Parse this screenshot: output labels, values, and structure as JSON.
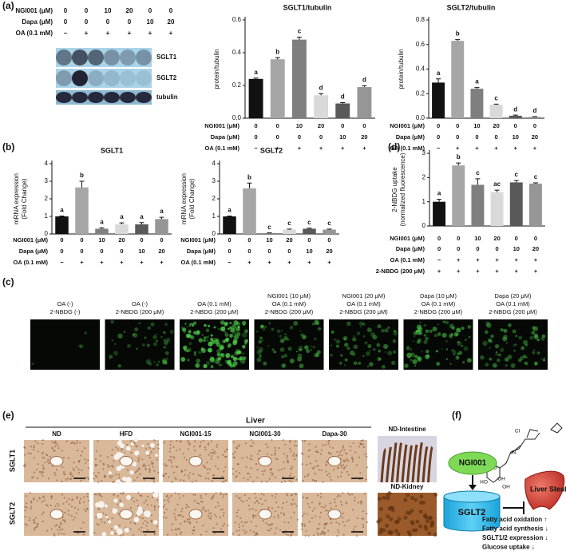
{
  "panel_labels": [
    "(a)",
    "(b)",
    "(c)",
    "(d)",
    "(e)",
    "(f)"
  ],
  "blot": {
    "treatments": [
      {
        "label": "NGI001 (μM)",
        "values": [
          "0",
          "0",
          "10",
          "20",
          "0",
          "0"
        ]
      },
      {
        "label": "Dapa (μM)",
        "values": [
          "0",
          "0",
          "0",
          "0",
          "10",
          "20"
        ]
      },
      {
        "label": "OA (0.1 mM)",
        "values": [
          "−",
          "+",
          "+",
          "+",
          "+",
          "+"
        ]
      }
    ],
    "bands": [
      "SGLT1",
      "SGLT2",
      "tubulin"
    ]
  },
  "chart_data": [
    {
      "type": "bar",
      "title": "SGLT1/tubulin",
      "ylabel": [
        "protein/tubulin"
      ],
      "values": [
        0.24,
        0.36,
        0.48,
        0.14,
        0.09,
        0.19
      ],
      "errors": [
        0.005,
        0.01,
        0.015,
        0.01,
        0.005,
        0.008
      ],
      "letters": [
        "a",
        "b",
        "c",
        "d",
        "d",
        "d"
      ],
      "colors": [
        "#111111",
        "#a6a6a6",
        "#7f7f7f",
        "#d9d9d9",
        "#595959",
        "#969696"
      ],
      "ylim": [
        0,
        0.6
      ],
      "yticks": [
        {
          "value": 0,
          "label": "0.0"
        },
        0.2,
        0.4,
        0.6
      ],
      "treatments": [
        {
          "label": "NGI001 (μM)",
          "values": [
            "0",
            "0",
            "10",
            "20",
            "0",
            "0"
          ]
        },
        {
          "label": "Dapa (μM)",
          "values": [
            "0",
            "0",
            "0",
            "0",
            "10",
            "20"
          ]
        },
        {
          "label": "OA (0.1 mM)",
          "values": [
            "−",
            "+",
            "+",
            "+",
            "+",
            "+"
          ]
        }
      ]
    },
    {
      "type": "bar",
      "title": "SGLT2/tubulin",
      "ylabel": [
        "protein/tubulin"
      ],
      "values": [
        0.29,
        0.63,
        0.24,
        0.11,
        0.02,
        0.01
      ],
      "errors": [
        0.03,
        0.01,
        0.01,
        0.005,
        0.005,
        0.003
      ],
      "letters": [
        "a",
        "b",
        "a",
        "c",
        "d",
        "d"
      ],
      "colors": [
        "#111111",
        "#a6a6a6",
        "#7f7f7f",
        "#d9d9d9",
        "#595959",
        "#969696"
      ],
      "ylim": [
        0,
        0.8
      ],
      "yticks": [
        {
          "value": 0,
          "label": "0.0"
        },
        0.2,
        0.4,
        0.6,
        0.8
      ],
      "treatments": [
        {
          "label": "NGI001 (μM)",
          "values": [
            "0",
            "0",
            "10",
            "20",
            "0",
            "0"
          ]
        },
        {
          "label": "Dapa (μM)",
          "values": [
            "0",
            "0",
            "0",
            "0",
            "10",
            "20"
          ]
        },
        {
          "label": "OA (0.1 mM)",
          "values": [
            "−",
            "+",
            "+",
            "+",
            "+",
            "+"
          ]
        }
      ]
    },
    {
      "type": "bar",
      "title": "SGLT1",
      "ylabel": [
        "mRNA expression",
        "(Fold Change)"
      ],
      "values": [
        1.0,
        2.65,
        0.3,
        0.55,
        0.55,
        0.85
      ],
      "errors": [
        0.02,
        0.35,
        0.05,
        0.08,
        0.1,
        0.1
      ],
      "letters": [
        "a",
        "b",
        "a",
        "a",
        "a",
        "a"
      ],
      "colors": [
        "#111111",
        "#a6a6a6",
        "#7f7f7f",
        "#d9d9d9",
        "#595959",
        "#969696"
      ],
      "ylim": [
        0,
        4
      ],
      "yticks": [
        0,
        1,
        2,
        3,
        4
      ],
      "treatments": [
        {
          "label": "NGI001 (μM)",
          "values": [
            "0",
            "0",
            "10",
            "20",
            "0",
            "0"
          ]
        },
        {
          "label": "Dapa (μM)",
          "values": [
            "0",
            "0",
            "0",
            "0",
            "10",
            "20"
          ]
        },
        {
          "label": "OA (0.1 mM)",
          "values": [
            "−",
            "+",
            "+",
            "+",
            "+",
            "+"
          ]
        }
      ]
    },
    {
      "type": "bar",
      "title": "SGLT2",
      "ylabel": [
        "mRNA expression",
        "(Fold Change)"
      ],
      "values": [
        1.0,
        2.6,
        0.05,
        0.25,
        0.3,
        0.25
      ],
      "errors": [
        0.02,
        0.3,
        0.01,
        0.03,
        0.03,
        0.03
      ],
      "letters": [
        "a",
        "b",
        "c",
        "c",
        "c",
        "c"
      ],
      "colors": [
        "#111111",
        "#a6a6a6",
        "#7f7f7f",
        "#d9d9d9",
        "#595959",
        "#969696"
      ],
      "ylim": [
        0,
        4
      ],
      "yticks": [
        0,
        1,
        2,
        3,
        4
      ],
      "treatments": [
        {
          "label": "NGI001 (μM)",
          "values": [
            "0",
            "0",
            "10",
            "20",
            "0",
            "0"
          ]
        },
        {
          "label": "Dapa (μM)",
          "values": [
            "0",
            "0",
            "0",
            "0",
            "10",
            "20"
          ]
        },
        {
          "label": "OA (0.1 mM)",
          "values": [
            "−",
            "+",
            "+",
            "+",
            "+",
            "+"
          ]
        }
      ]
    },
    {
      "type": "bar",
      "ylabel": [
        "2-NBDG uptake",
        "(normalized fluorescence)"
      ],
      "values": [
        1.0,
        2.5,
        1.7,
        1.4,
        1.8,
        1.75
      ],
      "errors": [
        0.1,
        0.1,
        0.25,
        0.08,
        0.08,
        0.03
      ],
      "letters": [
        "a",
        "b",
        "c",
        "ac",
        "c",
        "c"
      ],
      "colors": [
        "#111111",
        "#a6a6a6",
        "#7f7f7f",
        "#d9d9d9",
        "#595959",
        "#969696"
      ],
      "ylim": [
        0,
        3
      ],
      "yticks": [
        0,
        1,
        2,
        3
      ],
      "treatments": [
        {
          "label": "NGI001 (μM)",
          "values": [
            "0",
            "0",
            "10",
            "20",
            "0",
            "0"
          ]
        },
        {
          "label": "Dapa (μM)",
          "values": [
            "0",
            "0",
            "0",
            "0",
            "10",
            "20"
          ]
        },
        {
          "label": "OA (0.1 mM)",
          "values": [
            "−",
            "+",
            "+",
            "+",
            "+",
            "+"
          ]
        },
        {
          "label": "2-NBDG (200 μM)",
          "values": [
            "+",
            "+",
            "+",
            "+",
            "+",
            "+"
          ]
        }
      ]
    }
  ],
  "fluorescence": {
    "labels": [
      [
        "OA (-)",
        "2-NBDG (-)"
      ],
      [
        "OA (-)",
        "2-NBDG (200 μM)"
      ],
      [
        "OA (0.1 mM)",
        "2-NBDG (200 μM)"
      ],
      [
        "NGI001 (10 μM)",
        "OA (0.1 mM)",
        "2-NBDG (200 μM)"
      ],
      [
        "NGI001 (20 μM)",
        "OA (0.1 mM)",
        "2-NBDG (200 μM)"
      ],
      [
        "Dapa (10 μM)",
        "OA (0.1 mM)",
        "2-NBDG (200 μM)"
      ],
      [
        "Dapa (20 μM)",
        "OA (0.1 mM)",
        "2-NBDG (200 μM)"
      ]
    ]
  },
  "histology": {
    "group": "Liver",
    "columns": [
      "ND",
      "HFD",
      "NGI001-15",
      "NGI001-30",
      "Dapa-30"
    ],
    "controls": [
      "ND-Intestine",
      "ND-Kidney"
    ],
    "rows": [
      "SGLT1",
      "SGLT2"
    ]
  },
  "scheme": {
    "drug": "NGI001",
    "target": "SGLT2",
    "organ": "Liver Steatosis",
    "effects": [
      "Fatty acid oxidation ↑",
      "Fatty acid synthesis ↓",
      "SGLT1/2 expression ↓",
      "Glucose uptake ↓"
    ],
    "atoms": [
      "Cl",
      "N",
      "N",
      "O",
      "HO",
      "OH",
      "OH"
    ]
  }
}
